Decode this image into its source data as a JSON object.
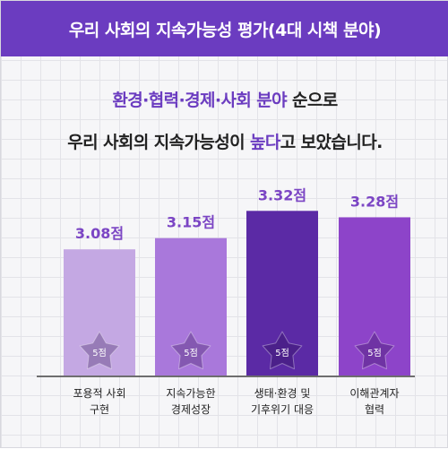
{
  "header": {
    "title": "우리 사회의 지속가능성 평가(4대 시책 분야)"
  },
  "headline": {
    "line1_highlight": "환경·협력·경제·사회 분야",
    "line1_rest": " 순으로",
    "line2_prefix": "우리 사회의 지속가능성이 ",
    "line2_highlight": "높다",
    "line2_suffix": "고 보았습니다."
  },
  "chart_data": {
    "type": "bar",
    "categories": [
      [
        "포용적 사회",
        "구현"
      ],
      [
        "지속가능한",
        "경제성장"
      ],
      [
        "생태·환경 및",
        "기후위기 대응"
      ],
      [
        "이해관계자",
        "협력"
      ]
    ],
    "values": [
      3.08,
      3.15,
      3.32,
      3.28
    ],
    "value_labels": [
      "3.08점",
      "3.15점",
      "3.32점",
      "3.28점"
    ],
    "badge_labels": [
      "5점",
      "5점",
      "5점",
      "5점"
    ],
    "colors": [
      "#c4a8e3",
      "#a978db",
      "#5b2aa5",
      "#8d44c9"
    ],
    "label_color": "#7b45c4"
  }
}
